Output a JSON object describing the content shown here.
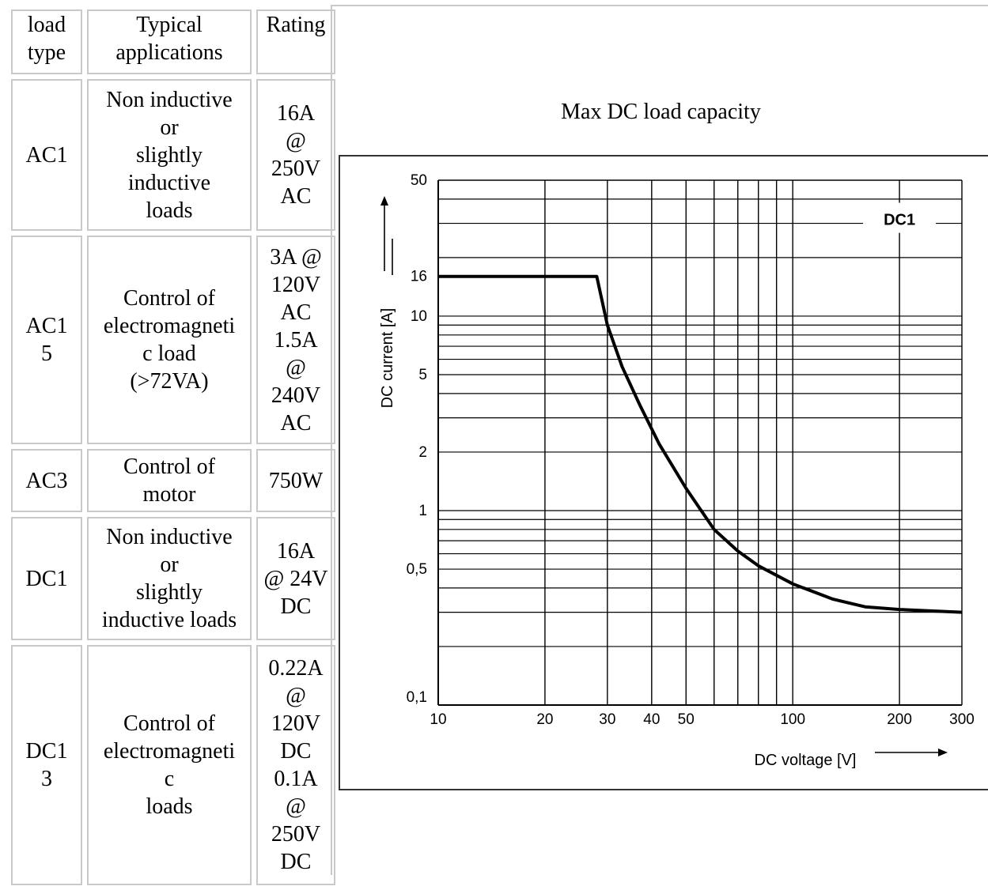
{
  "table": {
    "headers": [
      "load\ntype",
      "Typical\napplications",
      "Rating"
    ],
    "rows": [
      {
        "type": "AC1",
        "application": "Non inductive\nor\nslightly\ninductive\nloads",
        "rating": "16A\n@\n250V\nAC"
      },
      {
        "type": "AC1\n5",
        "application": "Control of\nelectromagneti\nc load\n(>72VA)",
        "rating": "3A @\n120V\nAC\n1.5A\n@\n240V\nAC"
      },
      {
        "type": "AC3",
        "application": "Control of\nmotor",
        "rating": "750W"
      },
      {
        "type": "DC1",
        "application": "Non inductive\nor\nslightly\ninductive loads",
        "rating": "16A\n@ 24V\nDC"
      },
      {
        "type": "DC1\n3",
        "application": "Control of\nelectromagneti\nc\nloads",
        "rating": "0.22A\n@\n120V\nDC\n0.1A\n@\n250V\nDC"
      }
    ]
  },
  "chart_title": "Max DC load capacity",
  "chart_data": {
    "type": "line",
    "title": "Max DC load capacity",
    "xlabel": "DC voltage [V]",
    "ylabel": "DC current [A]",
    "x_scale": "log",
    "y_scale": "log",
    "xlim": [
      10,
      300
    ],
    "ylim": [
      0.1,
      50
    ],
    "x_ticks": [
      10,
      20,
      30,
      40,
      50,
      100,
      200,
      300
    ],
    "x_tick_labels": [
      "10",
      "20",
      "30",
      "40",
      "50",
      "100",
      "200",
      "300"
    ],
    "y_ticks": [
      0.1,
      0.5,
      1,
      2,
      5,
      10,
      16,
      50
    ],
    "y_tick_labels": [
      "0,1",
      "0,5",
      "1",
      "2",
      "5",
      "10",
      "16",
      "50"
    ],
    "grid": true,
    "series": [
      {
        "name": "DC1",
        "x": [
          10,
          24,
          28,
          30,
          33,
          37,
          42,
          50,
          60,
          70,
          80,
          100,
          130,
          160,
          200,
          300
        ],
        "y": [
          16,
          16,
          16,
          9,
          5.5,
          3.5,
          2.2,
          1.3,
          0.8,
          0.62,
          0.52,
          0.42,
          0.35,
          0.32,
          0.31,
          0.3
        ]
      }
    ],
    "series_label": "DC1"
  }
}
